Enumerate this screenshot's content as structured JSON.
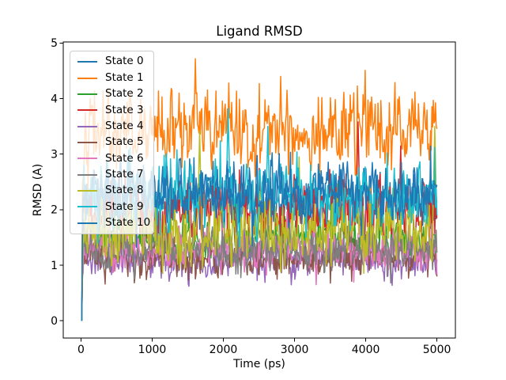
{
  "chart_data": {
    "type": "line",
    "title": "Ligand RMSD",
    "xlabel": "Time (ps)",
    "ylabel": "RMSD (A)",
    "xlim": [
      -260,
      5260
    ],
    "ylim": [
      -0.31,
      5.02
    ],
    "x_start": 0,
    "x_end": 5000,
    "n_points": 501,
    "x_ticks": [
      0,
      1000,
      2000,
      3000,
      4000,
      5000
    ],
    "y_ticks": [
      0,
      1,
      2,
      3,
      4,
      5
    ],
    "x_tick_labels": [
      "0",
      "1000",
      "2000",
      "3000",
      "4000",
      "5000"
    ],
    "y_tick_labels": [
      "0",
      "1",
      "2",
      "3",
      "4",
      "5"
    ],
    "grid": false,
    "legend_position": "upper left",
    "style": {
      "background": "#ffffff",
      "text_color": "#000000",
      "legend_border": "#cccccc",
      "legend_background": "rgba(255,255,255,0.8)"
    },
    "series_note": "All series start at RMSD 0 at t=0 then fluctuate noisily; values below are statistics estimated from the plot (means, noise spread, clamp range, notable peaks as [t_ps, rmsd]).",
    "series": [
      {
        "name": "State 0",
        "color": "#1f77b4",
        "seed": 11,
        "mean_est": 2.15,
        "noise_std_est": 0.34,
        "min_est": 0.95,
        "max_est": 3.35,
        "peaks_est": []
      },
      {
        "name": "State 1",
        "color": "#ff7f0e",
        "seed": 42,
        "mean_est": 3.42,
        "noise_std_est": 0.45,
        "min_est": 2.35,
        "max_est": 4.73,
        "peaks_est": [
          [
            1600,
            4.72
          ],
          [
            2070,
            4.28
          ],
          [
            2800,
            4.4
          ],
          [
            3380,
            4.02
          ],
          [
            4130,
            3.9
          ],
          [
            4690,
            4.12
          ]
        ]
      },
      {
        "name": "State 2",
        "color": "#2ca02c",
        "seed": 7,
        "mean_est": 1.5,
        "noise_std_est": 0.26,
        "min_est": 0.85,
        "max_est": 2.4,
        "peaks_est": []
      },
      {
        "name": "State 3",
        "color": "#d62728",
        "seed": 99,
        "mean_est": 1.95,
        "noise_std_est": 0.42,
        "min_est": 0.9,
        "max_est": 3.62,
        "peaks_est": [
          [
            3890,
            3.58
          ],
          [
            4490,
            3.15
          ]
        ]
      },
      {
        "name": "State 4",
        "color": "#9467bd",
        "seed": 23,
        "mean_est": 1.08,
        "noise_std_est": 0.21,
        "min_est": 0.5,
        "max_est": 1.85,
        "peaks_est": []
      },
      {
        "name": "State 5",
        "color": "#8c564b",
        "seed": 55,
        "mean_est": 1.12,
        "noise_std_est": 0.22,
        "min_est": 0.55,
        "max_est": 2.0,
        "peaks_est": []
      },
      {
        "name": "State 6",
        "color": "#e377c2",
        "seed": 68,
        "mean_est": 1.28,
        "noise_std_est": 0.24,
        "min_est": 0.65,
        "max_est": 2.15,
        "peaks_est": []
      },
      {
        "name": "State 7",
        "color": "#7f7f7f",
        "seed": 77,
        "mean_est": 1.3,
        "noise_std_est": 0.27,
        "min_est": 0.68,
        "max_est": 2.3,
        "peaks_est": []
      },
      {
        "name": "State 8",
        "color": "#bcbd22",
        "seed": 88,
        "mean_est": 1.62,
        "noise_std_est": 0.38,
        "min_est": 0.85,
        "max_est": 3.55,
        "peaks_est": [
          [
            1660,
            3.42
          ],
          [
            3060,
            2.95
          ],
          [
            4970,
            3.5
          ]
        ]
      },
      {
        "name": "State 9",
        "color": "#17becf",
        "seed": 31,
        "mean_est": 2.28,
        "noise_std_est": 0.4,
        "min_est": 1.15,
        "max_est": 3.88,
        "peaks_est": [
          [
            2060,
            3.82
          ],
          [
            2620,
            3.5
          ]
        ]
      },
      {
        "name": "State 10",
        "color": "#1f77b4",
        "seed": 64,
        "mean_est": 2.3,
        "noise_std_est": 0.36,
        "min_est": 1.05,
        "max_est": 3.45,
        "peaks_est": []
      }
    ]
  }
}
